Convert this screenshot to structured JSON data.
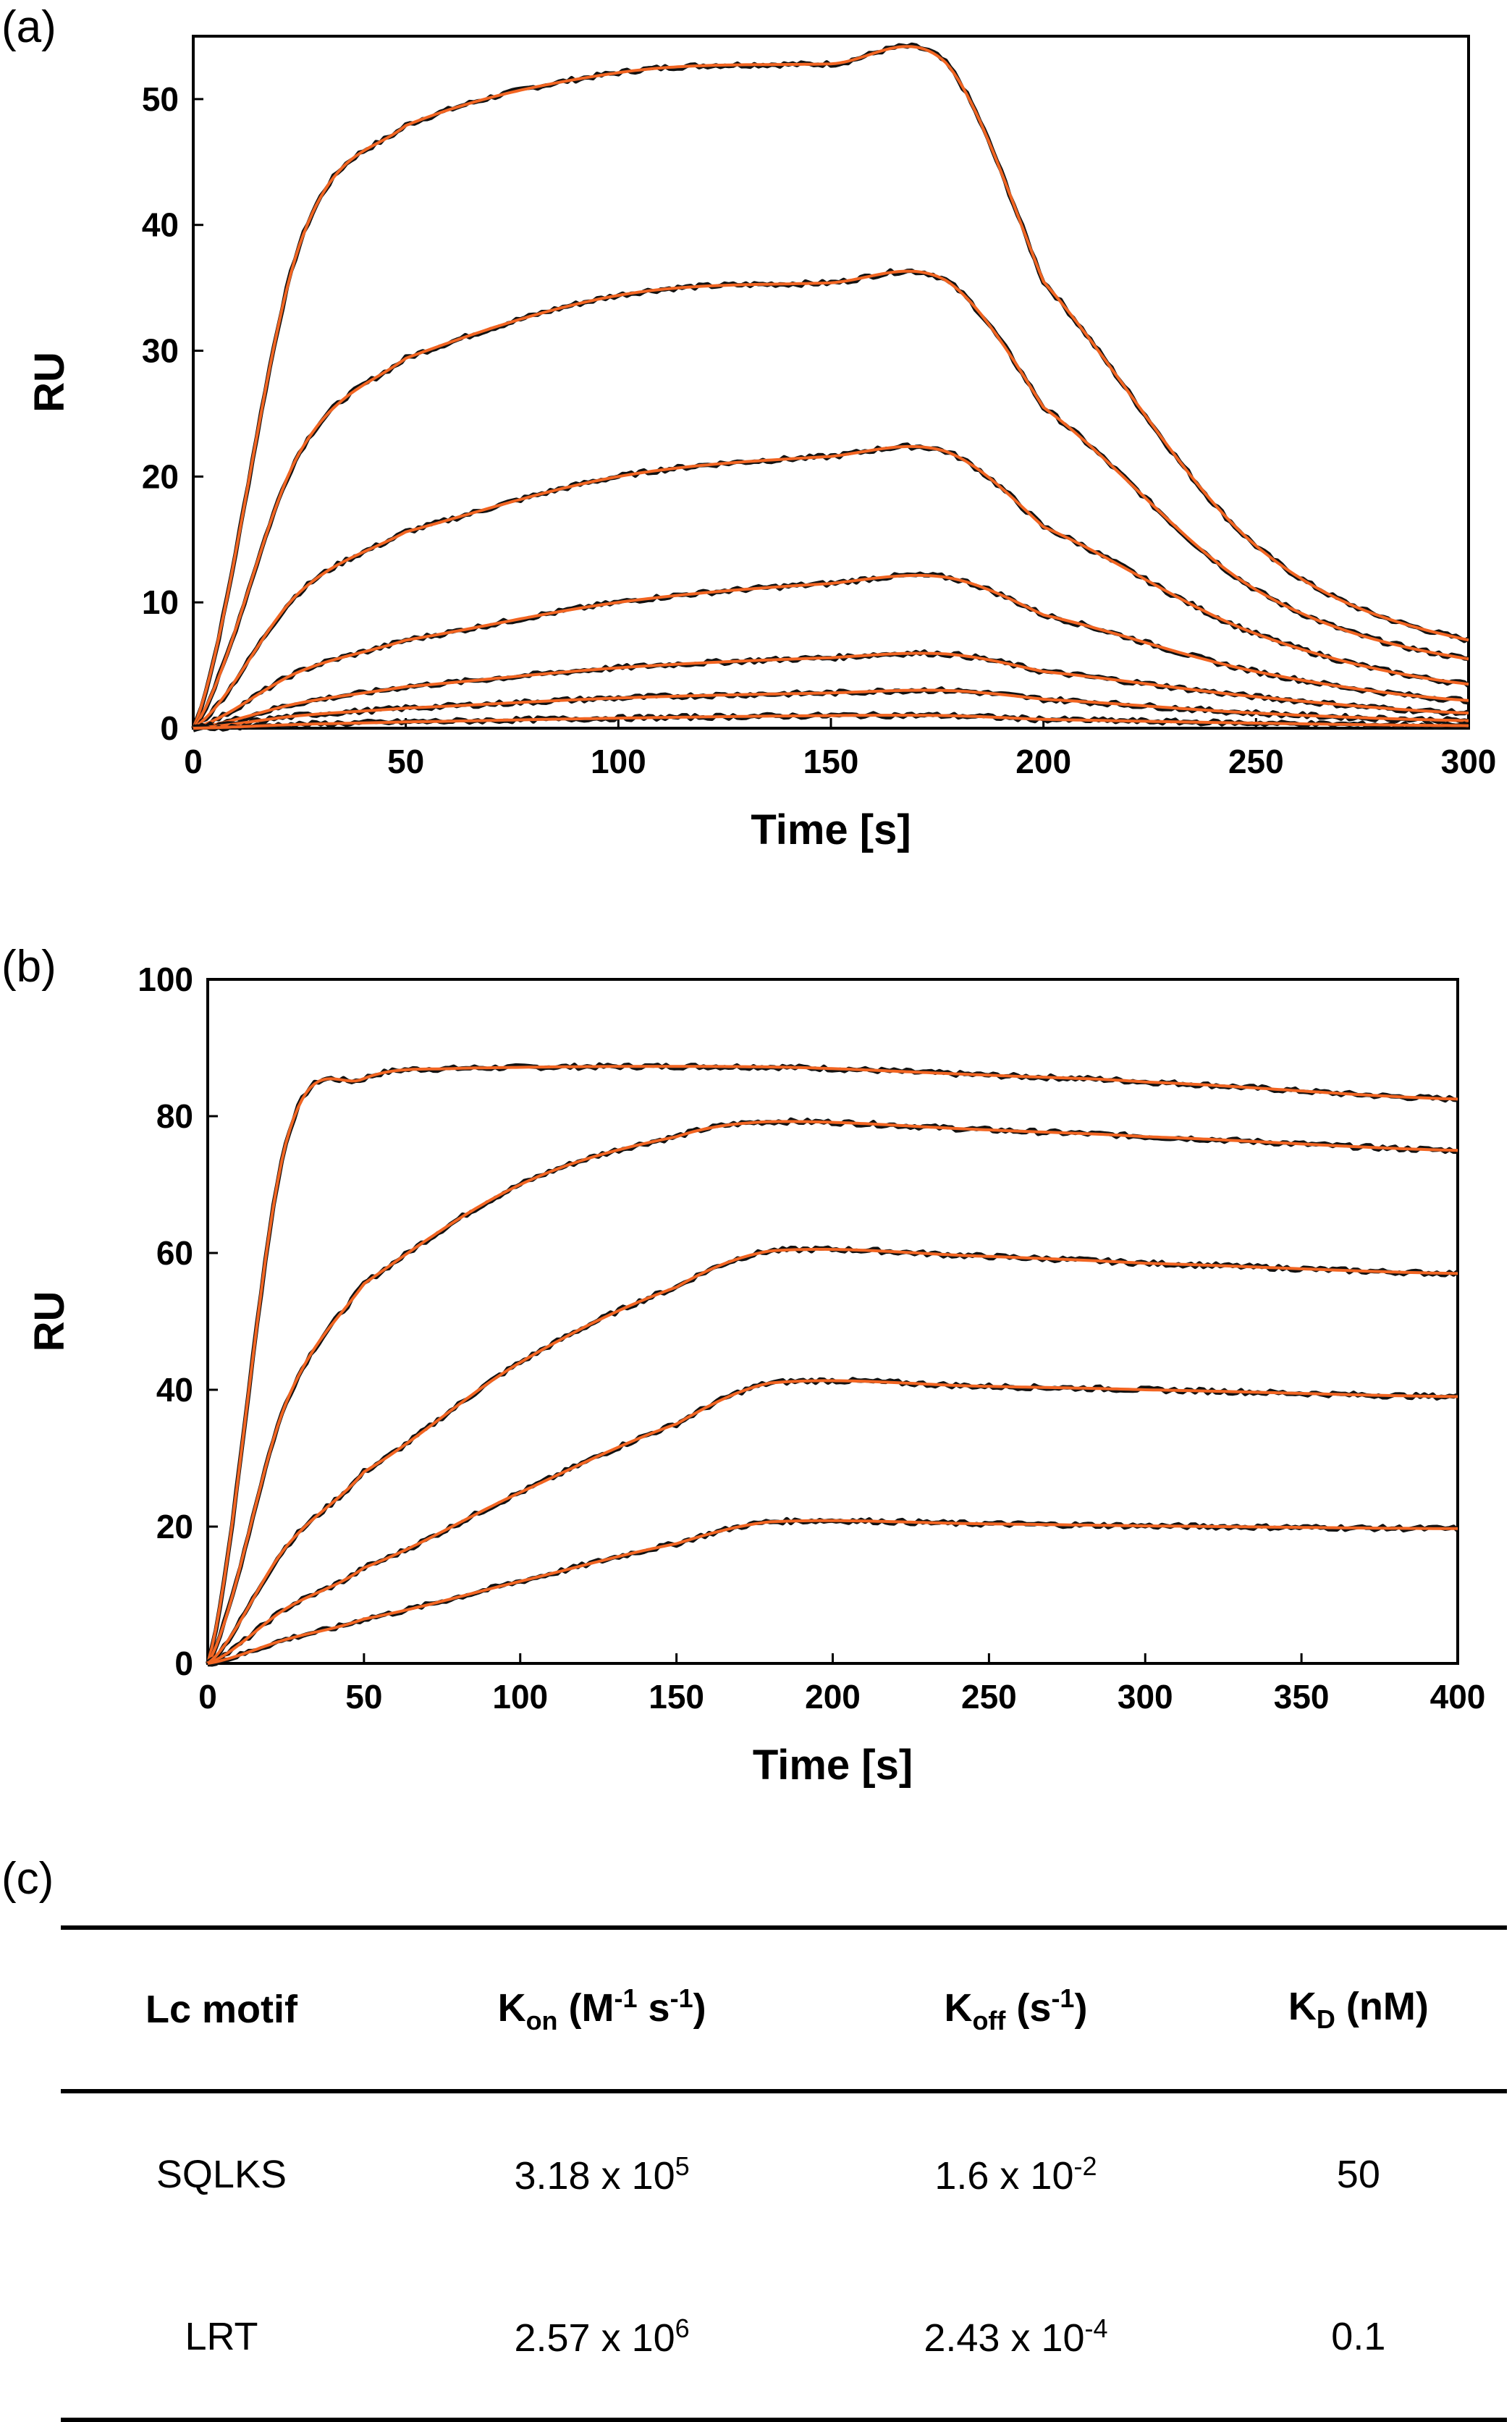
{
  "panels": {
    "a": "(a)",
    "b": "(b)",
    "c": "(c)"
  },
  "colors": {
    "data": "#111111",
    "fit": "#f26522",
    "frame": "#000000"
  },
  "chart_data": [
    {
      "type": "line",
      "panel": "(a)",
      "xlabel": "Time [s]",
      "ylabel": "RU",
      "xlim": [
        0,
        300
      ],
      "ylim": [
        0,
        55
      ],
      "xticks": [
        0,
        50,
        100,
        150,
        200,
        250,
        300
      ],
      "yticks": [
        0,
        10,
        20,
        30,
        40,
        50
      ],
      "grid": false,
      "injection_end_s": 177,
      "series": [
        {
          "values": [
            [
              0,
              0
            ],
            [
              25,
              38.4
            ],
            [
              50,
              47.9
            ],
            [
              100,
              52.1
            ],
            [
              150,
              52.8
            ],
            [
              177,
              52.9
            ],
            [
              200,
              35.5
            ],
            [
              250,
              14.5
            ],
            [
              300,
              7.0
            ]
          ]
        },
        {
          "values": [
            [
              0,
              0
            ],
            [
              25,
              21.9
            ],
            [
              50,
              29.4
            ],
            [
              100,
              34.4
            ],
            [
              150,
              35.4
            ],
            [
              177,
              35.6
            ],
            [
              200,
              25.5
            ],
            [
              250,
              11.0
            ],
            [
              300,
              5.5
            ]
          ]
        },
        {
          "values": [
            [
              0,
              0
            ],
            [
              25,
              10.8
            ],
            [
              50,
              15.6
            ],
            [
              100,
              20.0
            ],
            [
              150,
              21.6
            ],
            [
              177,
              22.0
            ],
            [
              200,
              16.0
            ],
            [
              250,
              7.5
            ],
            [
              300,
              3.5
            ]
          ]
        },
        {
          "values": [
            [
              0,
              0
            ],
            [
              25,
              4.5
            ],
            [
              50,
              7.0
            ],
            [
              100,
              10.0
            ],
            [
              150,
              11.5
            ],
            [
              177,
              12.0
            ],
            [
              200,
              9.0
            ],
            [
              250,
              4.5
            ],
            [
              300,
              2.2
            ]
          ]
        },
        {
          "values": [
            [
              0,
              0
            ],
            [
              25,
              2.0
            ],
            [
              50,
              3.3
            ],
            [
              100,
              4.8
            ],
            [
              150,
              5.6
            ],
            [
              177,
              5.9
            ],
            [
              200,
              4.5
            ],
            [
              250,
              2.5
            ],
            [
              300,
              1.2
            ]
          ]
        },
        {
          "values": [
            [
              0,
              0
            ],
            [
              25,
              1.0
            ],
            [
              50,
              1.6
            ],
            [
              100,
              2.4
            ],
            [
              150,
              2.8
            ],
            [
              177,
              3.0
            ],
            [
              200,
              2.3
            ],
            [
              250,
              1.2
            ],
            [
              300,
              0.6
            ]
          ]
        },
        {
          "values": [
            [
              0,
              0
            ],
            [
              25,
              0.3
            ],
            [
              50,
              0.5
            ],
            [
              100,
              0.8
            ],
            [
              150,
              1.0
            ],
            [
              177,
              1.0
            ],
            [
              200,
              0.7
            ],
            [
              250,
              0.4
            ],
            [
              300,
              0.2
            ]
          ]
        }
      ]
    },
    {
      "type": "line",
      "panel": "(b)",
      "xlabel": "Time [s]",
      "ylabel": "RU",
      "xlim": [
        0,
        400
      ],
      "ylim": [
        0,
        100
      ],
      "xticks": [
        0,
        50,
        100,
        150,
        200,
        250,
        300,
        350,
        400
      ],
      "yticks": [
        0,
        20,
        40,
        60,
        80,
        100
      ],
      "grid": false,
      "injection_end_s": 180,
      "series": [
        {
          "values": [
            [
              0,
              0
            ],
            [
              25,
              76.0
            ],
            [
              50,
              85.5
            ],
            [
              80,
              87.0
            ],
            [
              180,
              87.2
            ],
            [
              250,
              86.0
            ],
            [
              300,
              85.0
            ],
            [
              400,
              82.5
            ]
          ]
        },
        {
          "values": [
            [
              0,
              0
            ],
            [
              25,
              38.0
            ],
            [
              50,
              55.5
            ],
            [
              100,
              70.0
            ],
            [
              150,
              77.0
            ],
            [
              180,
              79.2
            ],
            [
              250,
              78.0
            ],
            [
              300,
              77.0
            ],
            [
              400,
              75.0
            ]
          ]
        },
        {
          "values": [
            [
              0,
              0
            ],
            [
              25,
              17.0
            ],
            [
              50,
              28.0
            ],
            [
              100,
              44.0
            ],
            [
              150,
              55.0
            ],
            [
              180,
              60.3
            ],
            [
              250,
              59.5
            ],
            [
              300,
              58.5
            ],
            [
              400,
              57.0
            ]
          ]
        },
        {
          "values": [
            [
              0,
              0
            ],
            [
              25,
              8.0
            ],
            [
              50,
              14.0
            ],
            [
              100,
              25.0
            ],
            [
              150,
              35.0
            ],
            [
              180,
              41.0
            ],
            [
              250,
              40.5
            ],
            [
              300,
              40.0
            ],
            [
              400,
              39.0
            ]
          ]
        },
        {
          "values": [
            [
              0,
              0
            ],
            [
              25,
              3.5
            ],
            [
              50,
              6.5
            ],
            [
              100,
              12.0
            ],
            [
              150,
              17.5
            ],
            [
              180,
              20.7
            ],
            [
              250,
              20.4
            ],
            [
              300,
              20.1
            ],
            [
              400,
              19.7
            ]
          ]
        }
      ]
    }
  ],
  "table": {
    "headers": {
      "motif": "Lc motif",
      "kon_main": "K",
      "kon_sub": "on",
      "kon_unit_a": " (M",
      "kon_sup1": "-1",
      "kon_unit_b": " s",
      "kon_sup2": "-1",
      "kon_unit_c": ")",
      "koff_main": "K",
      "koff_sub": "off",
      "koff_unit_a": " (s",
      "koff_sup": "-1",
      "koff_unit_b": ")",
      "kd_main": "K",
      "kd_sub": "D",
      "kd_unit": " (nM)"
    },
    "rows": [
      {
        "motif": "SQLKS",
        "kon_base": "3.18 x 10",
        "kon_exp": "5",
        "koff_base": "1.6 x 10",
        "koff_exp": "-2",
        "kd": "50"
      },
      {
        "motif": "LRT",
        "kon_base": "2.57 x 10",
        "kon_exp": "6",
        "koff_base": "2.43 x 10",
        "koff_exp": "-4",
        "kd": "0.1"
      }
    ]
  }
}
